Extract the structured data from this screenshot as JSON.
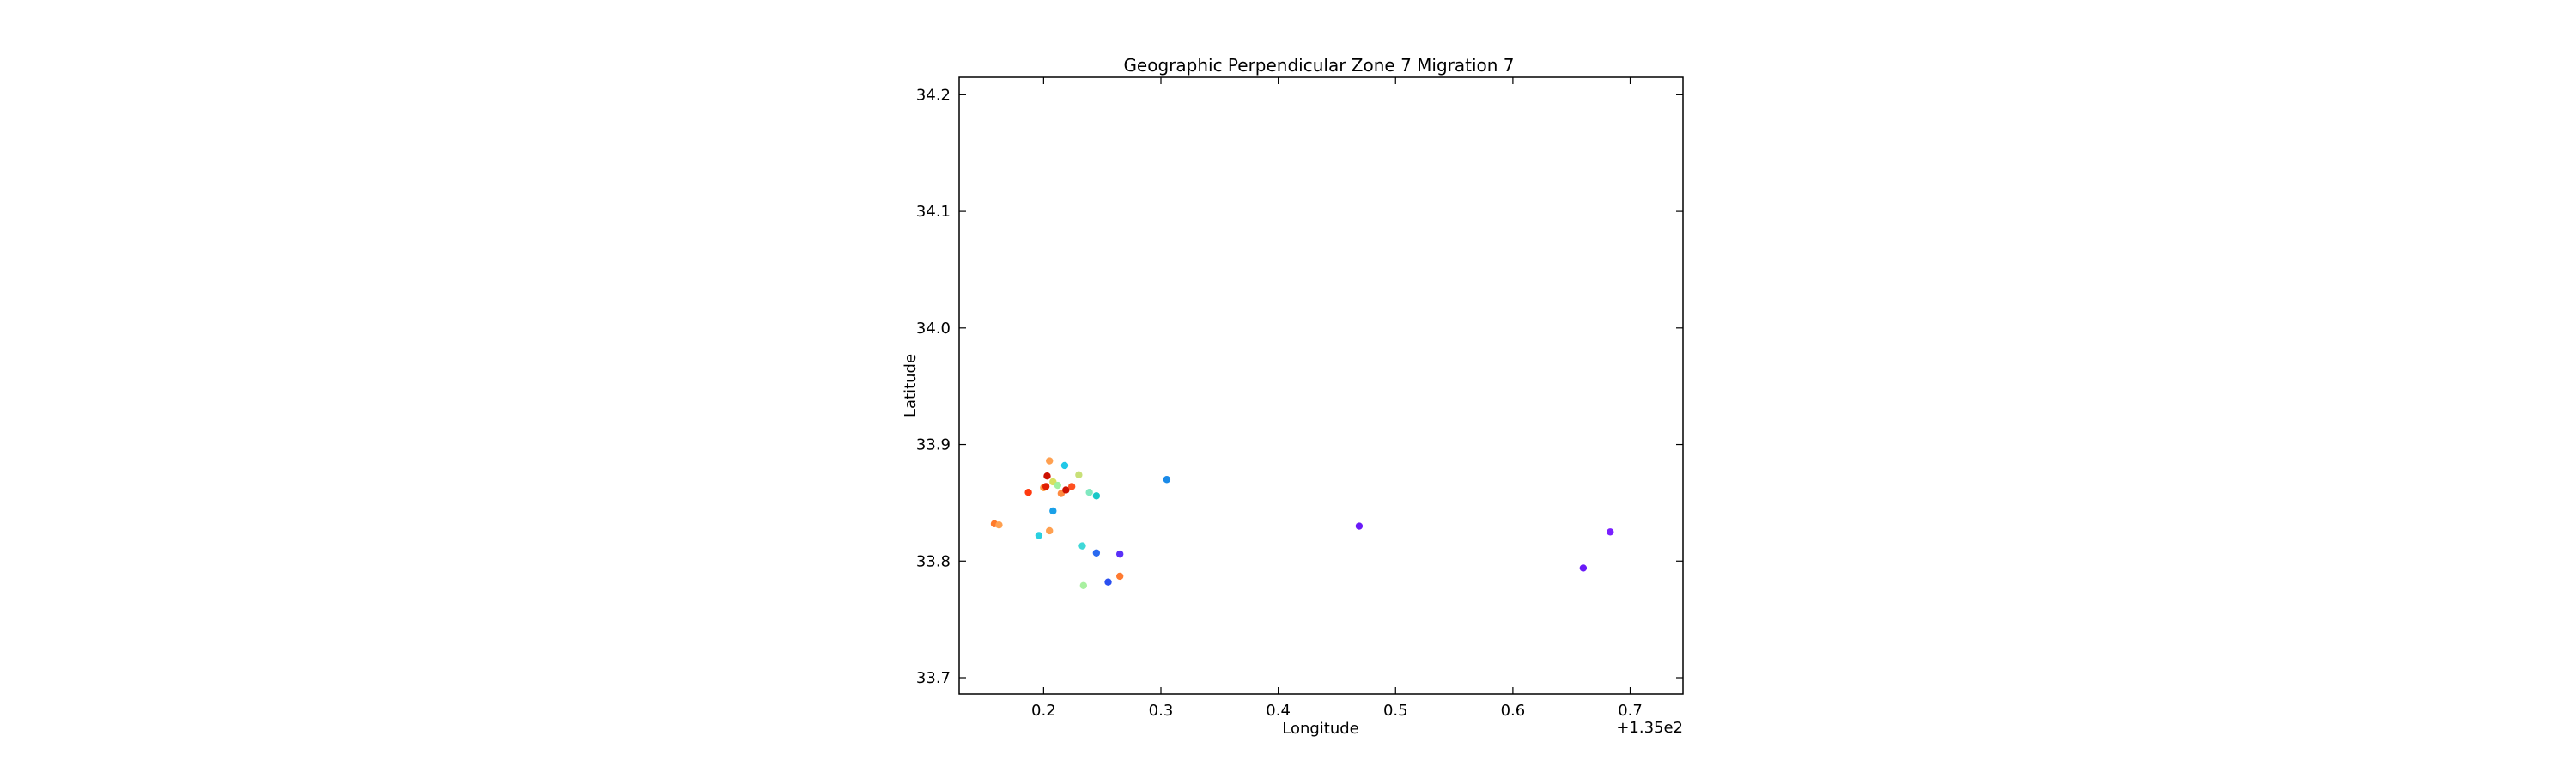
{
  "chart_data": {
    "type": "scatter",
    "title": "Geographic Perpendicular Zone 7 Migration 7",
    "xlabel": "Longitude",
    "ylabel": "Latitude",
    "x_offset_label": "+1.35e2",
    "xlim": [
      0.128,
      0.745
    ],
    "ylim": [
      33.686,
      34.215
    ],
    "x_ticks": [
      0.2,
      0.3,
      0.4,
      0.5,
      0.6,
      0.7
    ],
    "x_tick_labels": [
      "0.2",
      "0.3",
      "0.4",
      "0.5",
      "0.6",
      "0.7"
    ],
    "y_ticks": [
      33.7,
      33.8,
      33.9,
      34.0,
      34.1,
      34.2
    ],
    "y_tick_labels": [
      "33.7",
      "33.8",
      "33.9",
      "34.0",
      "34.1",
      "34.2"
    ],
    "grid": false,
    "points": [
      {
        "x": 0.158,
        "y": 33.832,
        "color": "#ff7a2a"
      },
      {
        "x": 0.162,
        "y": 33.831,
        "color": "#ffa050"
      },
      {
        "x": 0.187,
        "y": 33.859,
        "color": "#ff3a10"
      },
      {
        "x": 0.196,
        "y": 33.822,
        "color": "#2ad0e0"
      },
      {
        "x": 0.2,
        "y": 33.863,
        "color": "#ff9a40"
      },
      {
        "x": 0.202,
        "y": 33.864,
        "color": "#e02000"
      },
      {
        "x": 0.203,
        "y": 33.873,
        "color": "#cc1000"
      },
      {
        "x": 0.205,
        "y": 33.886,
        "color": "#ffa050"
      },
      {
        "x": 0.205,
        "y": 33.826,
        "color": "#ffa050"
      },
      {
        "x": 0.208,
        "y": 33.843,
        "color": "#1aa0e8"
      },
      {
        "x": 0.208,
        "y": 33.868,
        "color": "#d8e060"
      },
      {
        "x": 0.212,
        "y": 33.865,
        "color": "#a0f0a0"
      },
      {
        "x": 0.215,
        "y": 33.858,
        "color": "#ff8a40"
      },
      {
        "x": 0.218,
        "y": 33.882,
        "color": "#20c8e8"
      },
      {
        "x": 0.219,
        "y": 33.861,
        "color": "#cc1000"
      },
      {
        "x": 0.224,
        "y": 33.864,
        "color": "#ff5020"
      },
      {
        "x": 0.23,
        "y": 33.874,
        "color": "#c8e078"
      },
      {
        "x": 0.233,
        "y": 33.813,
        "color": "#40d8d8"
      },
      {
        "x": 0.234,
        "y": 33.779,
        "color": "#a8f0a0"
      },
      {
        "x": 0.239,
        "y": 33.859,
        "color": "#80e8c0"
      },
      {
        "x": 0.245,
        "y": 33.856,
        "color": "#18c8c8"
      },
      {
        "x": 0.245,
        "y": 33.807,
        "color": "#2a6af0"
      },
      {
        "x": 0.255,
        "y": 33.782,
        "color": "#2a4ff0"
      },
      {
        "x": 0.265,
        "y": 33.787,
        "color": "#ff7a30"
      },
      {
        "x": 0.265,
        "y": 33.806,
        "color": "#5a30f8"
      },
      {
        "x": 0.305,
        "y": 33.87,
        "color": "#1a8ae8"
      },
      {
        "x": 0.469,
        "y": 33.83,
        "color": "#6a1af8"
      },
      {
        "x": 0.66,
        "y": 33.794,
        "color": "#6a1af8"
      },
      {
        "x": 0.683,
        "y": 33.825,
        "color": "#7a20ff"
      }
    ]
  }
}
